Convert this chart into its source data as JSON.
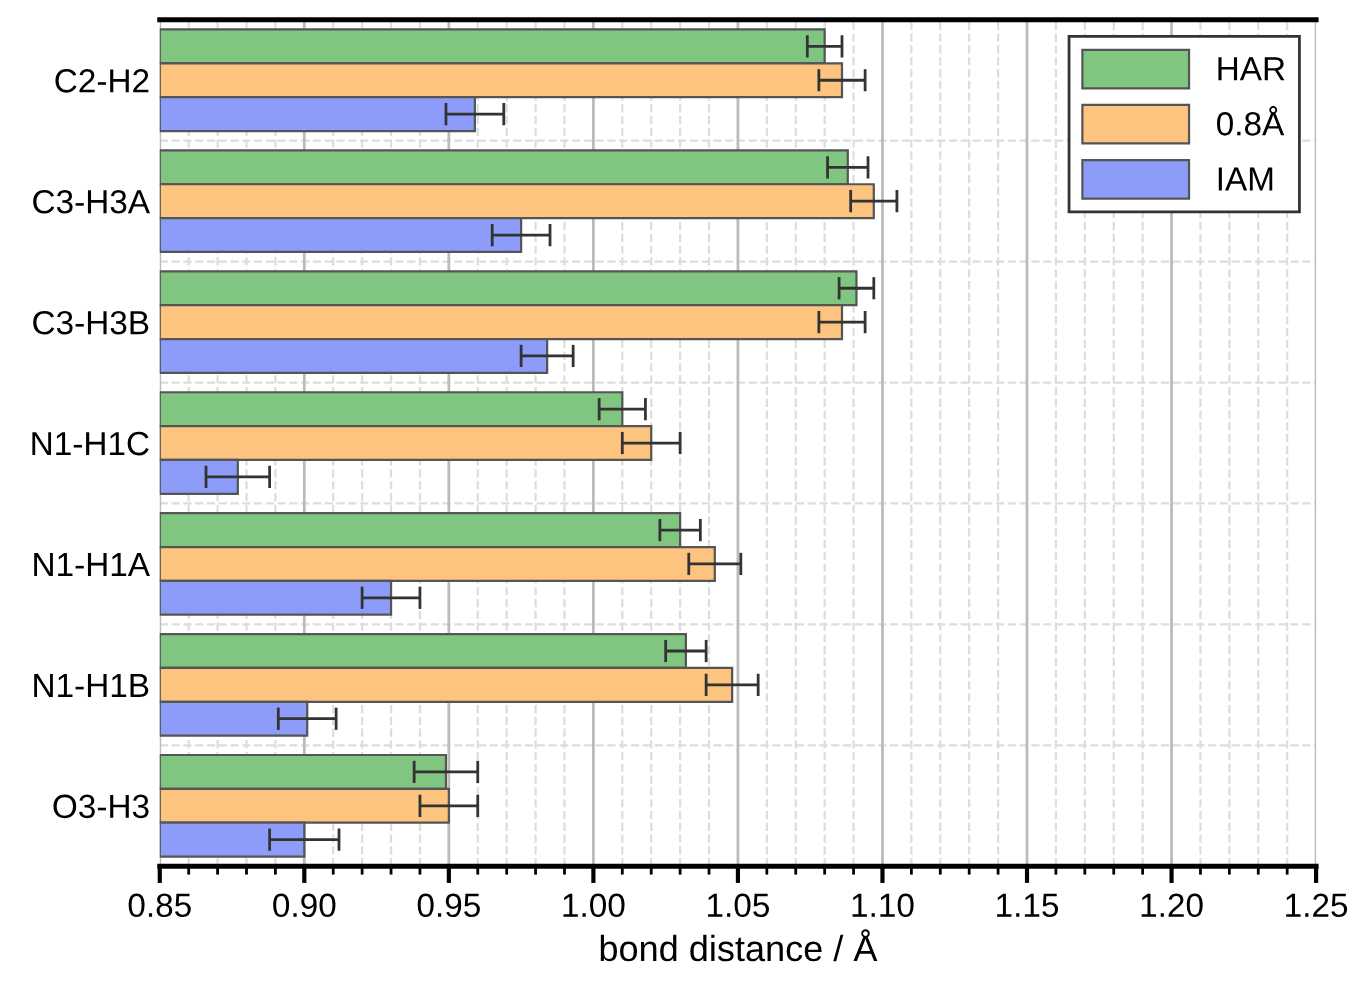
{
  "chart_data": {
    "type": "bar",
    "orientation": "horizontal",
    "xlabel": "bond distance / Å",
    "categories": [
      "C2-H2",
      "C3-H3A",
      "C3-H3B",
      "N1-H1C",
      "N1-H1A",
      "N1-H1B",
      "O3-H3"
    ],
    "series": [
      {
        "name": "HAR",
        "color": "#80c580",
        "values": [
          1.08,
          1.088,
          1.091,
          1.01,
          1.03,
          1.032,
          0.949
        ],
        "errors": [
          0.006,
          0.007,
          0.006,
          0.008,
          0.007,
          0.007,
          0.011
        ]
      },
      {
        "name": "0.8Å",
        "color": "#fdc47f",
        "values": [
          1.086,
          1.097,
          1.086,
          1.02,
          1.042,
          1.048,
          0.95
        ],
        "errors": [
          0.008,
          0.008,
          0.008,
          0.01,
          0.009,
          0.009,
          0.01
        ]
      },
      {
        "name": "IAM",
        "color": "#8c9cf8",
        "values": [
          0.959,
          0.975,
          0.984,
          0.877,
          0.93,
          0.901,
          0.9
        ],
        "errors": [
          0.01,
          0.01,
          0.009,
          0.011,
          0.01,
          0.01,
          0.012
        ]
      }
    ],
    "xlim": [
      0.85,
      1.25
    ],
    "xticks": [
      0.85,
      {
        "value": 0.9,
        "label": "0.90"
      },
      0.95,
      {
        "value": 1.0,
        "label": "1.00"
      },
      1.05,
      {
        "value": 1.1,
        "label": "1.10"
      },
      1.15,
      {
        "value": 1.2,
        "label": "1.20"
      },
      1.25
    ],
    "grid": true,
    "legend": "top right"
  }
}
